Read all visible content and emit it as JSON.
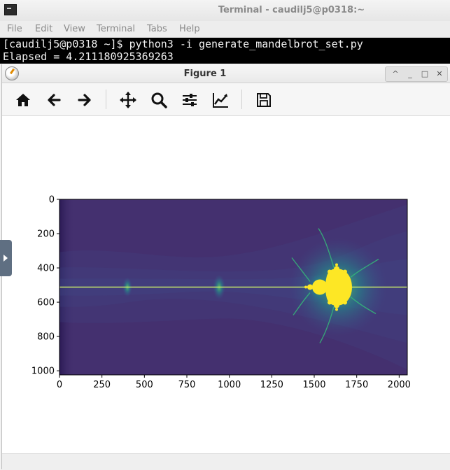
{
  "terminal": {
    "title": "Terminal - caudilj5@p0318:~",
    "menu": [
      "File",
      "Edit",
      "View",
      "Terminal",
      "Tabs",
      "Help"
    ],
    "lines": [
      "[caudilj5@p0318 ~]$ python3 -i generate_mandelbrot_set.py",
      "Elapsed = 4.211180925369263"
    ]
  },
  "figure": {
    "title": "Figure 1",
    "toolbar": [
      {
        "name": "home-icon"
      },
      {
        "name": "back-arrow-icon"
      },
      {
        "name": "forward-arrow-icon"
      },
      {
        "name": "pan-icon"
      },
      {
        "name": "zoom-icon"
      },
      {
        "name": "subplots-icon"
      },
      {
        "name": "edit-curves-icon"
      },
      {
        "name": "save-icon"
      }
    ],
    "window_buttons": [
      "^",
      "_",
      "□",
      "✕"
    ]
  },
  "chart_data": {
    "type": "heatmap",
    "title": "",
    "xlabel": "",
    "ylabel": "",
    "xlim": [
      0,
      2048
    ],
    "ylim": [
      1024,
      0
    ],
    "x_ticks": [
      "0",
      "250",
      "500",
      "750",
      "1000",
      "1250",
      "1500",
      "1750",
      "2000"
    ],
    "y_ticks": [
      "0",
      "200",
      "400",
      "600",
      "800",
      "1000"
    ],
    "colormap": "viridis",
    "colors": {
      "background": "#44306f",
      "line": "#c8e86a",
      "set": "#fde725"
    }
  }
}
